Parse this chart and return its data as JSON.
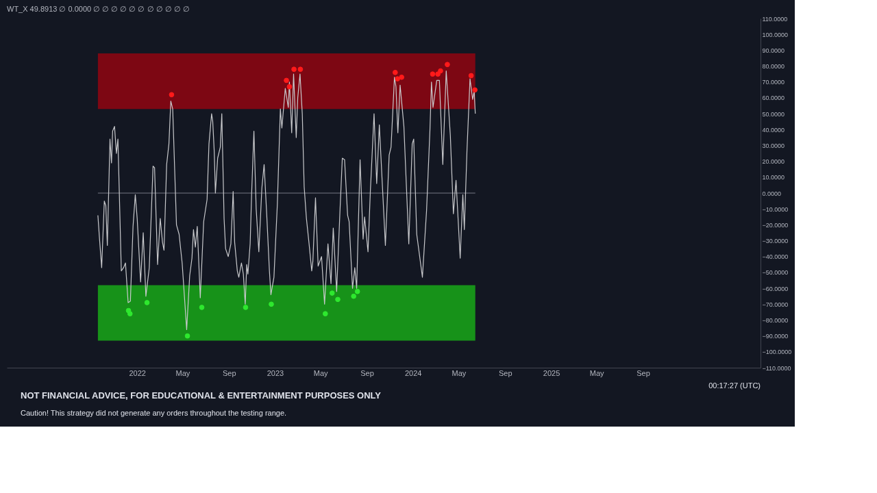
{
  "chart_data": {
    "type": "line",
    "title": "WT_X 49.8913 ∅ 0.0000 ∅ ∅ ∅ ∅ ∅ ∅ ∅ ∅ ∅ ∅ ∅",
    "annotations": [
      "NOT FINANCIAL ADVICE, FOR EDUCATIONAL & ENTERTAINMENT PURPOSES ONLY",
      "Caution! This strategy did not generate any orders throughout the testing range.",
      "00:17:27 (UTC)"
    ],
    "xlim": [
      "2021-01-21",
      "2026-07-09"
    ],
    "xticks": [
      {
        "value": "2022-01-01",
        "label": "2022"
      },
      {
        "value": "2022-05-01",
        "label": "May"
      },
      {
        "value": "2022-09-01",
        "label": "Sep"
      },
      {
        "value": "2023-01-01",
        "label": "2023"
      },
      {
        "value": "2023-05-01",
        "label": "May"
      },
      {
        "value": "2023-09-01",
        "label": "Sep"
      },
      {
        "value": "2024-01-01",
        "label": "2024"
      },
      {
        "value": "2024-05-01",
        "label": "May"
      },
      {
        "value": "2024-09-01",
        "label": "Sep"
      },
      {
        "value": "2025-01-01",
        "label": "2025"
      },
      {
        "value": "2025-05-01",
        "label": "May"
      },
      {
        "value": "2025-09-01",
        "label": "Sep"
      }
    ],
    "ylim": [
      -110,
      110
    ],
    "yticks": [
      {
        "value": -110,
        "label": "−110.0000"
      },
      {
        "value": -100,
        "label": "−100.0000"
      },
      {
        "value": -90,
        "label": "−90.0000"
      },
      {
        "value": -80,
        "label": "−80.0000"
      },
      {
        "value": -70,
        "label": "−70.0000"
      },
      {
        "value": -60,
        "label": "−60.0000"
      },
      {
        "value": -50,
        "label": "−50.0000"
      },
      {
        "value": -40,
        "label": "−40.0000"
      },
      {
        "value": -30,
        "label": "−30.0000"
      },
      {
        "value": -20,
        "label": "−20.0000"
      },
      {
        "value": -10,
        "label": "−10.0000"
      },
      {
        "value": 0,
        "label": "0.0000"
      },
      {
        "value": 10,
        "label": "10.0000"
      },
      {
        "value": 20,
        "label": "20.0000"
      },
      {
        "value": 30,
        "label": "30.0000"
      },
      {
        "value": 40,
        "label": "40.0000"
      },
      {
        "value": 50,
        "label": "50.0000"
      },
      {
        "value": 60,
        "label": "60.0000"
      },
      {
        "value": 70,
        "label": "70.0000"
      },
      {
        "value": 80,
        "label": "80.0000"
      },
      {
        "value": 90,
        "label": "90.0000"
      },
      {
        "value": 100,
        "label": "100.0000"
      },
      {
        "value": 110,
        "label": "110.0000"
      }
    ],
    "grid": false,
    "bands": [
      {
        "axis": "y",
        "from": 53,
        "to": 88,
        "color": "#8a0612"
      },
      {
        "axis": "y",
        "from": -93,
        "to": -58,
        "color": "#18a018"
      }
    ],
    "ref_lines": [
      {
        "axis": "y",
        "value": 0,
        "color": "#787b86"
      }
    ],
    "series": [
      {
        "type": "line",
        "color": "#c8c9cc",
        "marker": "none",
        "line_style": "solid",
        "x": [
          "2021-09-19",
          "2021-09-23",
          "2021-09-29",
          "2021-10-06",
          "2021-10-10",
          "2021-10-14",
          "2021-10-21",
          "2021-10-25",
          "2021-10-28",
          "2021-11-02",
          "2021-11-07",
          "2021-11-11",
          "2021-11-20",
          "2021-11-26",
          "2021-12-01",
          "2021-12-08",
          "2021-12-14",
          "2021-12-21",
          "2021-12-27",
          "2022-01-01",
          "2022-01-10",
          "2022-01-17",
          "2022-01-24",
          "2022-02-02",
          "2022-02-12",
          "2022-02-16",
          "2022-02-24",
          "2022-03-03",
          "2022-03-09",
          "2022-03-13",
          "2022-03-20",
          "2022-03-26",
          "2022-03-31",
          "2022-04-05",
          "2022-04-15",
          "2022-04-22",
          "2022-04-30",
          "2022-05-12",
          "2022-05-20",
          "2022-05-26",
          "2022-05-30",
          "2022-06-04",
          "2022-06-09",
          "2022-06-17",
          "2022-06-26",
          "2022-07-05",
          "2022-07-10",
          "2022-07-17",
          "2022-07-20",
          "2022-07-24",
          "2022-07-27",
          "2022-08-02",
          "2022-08-09",
          "2022-08-13",
          "2022-08-19",
          "2022-08-23",
          "2022-08-30",
          "2022-09-06",
          "2022-09-12",
          "2022-09-16",
          "2022-09-23",
          "2022-09-27",
          "2022-10-04",
          "2022-10-09",
          "2022-10-14",
          "2022-10-18",
          "2022-10-21",
          "2022-10-27",
          "2022-10-31",
          "2022-11-06",
          "2022-11-12",
          "2022-11-19",
          "2022-11-27",
          "2022-12-03",
          "2022-12-10",
          "2022-12-17",
          "2022-12-21",
          "2022-12-29",
          "2023-01-07",
          "2023-01-15",
          "2023-01-19",
          "2023-01-28",
          "2023-02-05",
          "2023-02-08",
          "2023-02-14",
          "2023-02-19",
          "2023-02-26",
          "2023-03-02",
          "2023-03-08",
          "2023-03-14",
          "2023-03-19",
          "2023-03-25",
          "2023-04-01",
          "2023-04-08",
          "2023-04-11",
          "2023-04-18",
          "2023-04-25",
          "2023-05-04",
          "2023-05-12",
          "2023-05-21",
          "2023-05-29",
          "2023-06-04",
          "2023-06-13",
          "2023-06-22",
          "2023-06-28",
          "2023-07-04",
          "2023-07-12",
          "2023-07-16",
          "2023-07-25",
          "2023-07-31",
          "2023-08-05",
          "2023-08-14",
          "2023-08-22",
          "2023-08-26",
          "2023-09-04",
          "2023-09-10",
          "2023-09-20",
          "2023-09-27",
          "2023-10-04",
          "2023-10-20",
          "2023-10-30",
          "2023-11-04",
          "2023-11-13",
          "2023-11-17",
          "2023-11-22",
          "2023-11-28",
          "2023-12-08",
          "2023-12-21",
          "2023-12-30",
          "2024-01-03",
          "2024-01-11",
          "2024-01-26",
          "2024-02-06",
          "2024-02-15",
          "2024-02-19",
          "2024-02-23",
          "2024-03-04",
          "2024-03-11",
          "2024-03-20",
          "2024-03-29",
          "2024-04-09",
          "2024-04-17",
          "2024-04-24",
          "2024-05-05",
          "2024-05-12",
          "2024-05-16",
          "2024-05-23",
          "2024-05-31",
          "2024-06-07",
          "2024-06-11",
          "2024-06-14"
        ],
        "values": [
          -14,
          -28,
          -47,
          -5,
          -8,
          -33,
          34,
          19,
          39,
          42,
          25,
          34,
          -49,
          -47,
          -44,
          -69,
          -68,
          -21,
          -1,
          -16,
          -56,
          -25,
          -65,
          -47,
          17,
          16,
          -45,
          -16,
          -31,
          -36,
          18,
          31,
          58,
          53,
          -20,
          -26,
          -44,
          -86,
          -52,
          -41,
          -23,
          -34,
          -21,
          -66,
          -18,
          -4,
          31,
          50,
          45,
          26,
          0,
          22,
          29,
          50,
          -16,
          -35,
          -40,
          -32,
          1,
          -31,
          -49,
          -53,
          -44,
          -51,
          -70,
          -45,
          -51,
          -32,
          0,
          39,
          -10,
          -37,
          3,
          18,
          -14,
          -49,
          -64,
          -53,
          -7,
          53,
          41,
          66,
          54,
          70,
          38,
          75,
          35,
          60,
          75,
          50,
          4,
          -16,
          -32,
          -49,
          -43,
          -3,
          -46,
          -40,
          -70,
          -32,
          -57,
          -22,
          -62,
          -10,
          22,
          21,
          -14,
          -18,
          -60,
          -47,
          -60,
          21,
          -29,
          -15,
          -37,
          0,
          50,
          6,
          43,
          -33,
          24,
          29,
          73,
          67,
          38,
          68,
          42,
          -32,
          31,
          34,
          -26,
          -53,
          -11,
          40,
          70,
          54,
          71,
          71,
          18,
          77,
          36,
          -13,
          8,
          -41,
          -1,
          -23,
          27,
          72,
          59,
          64,
          50
        ]
      },
      {
        "type": "scatter",
        "color": "#ff1a1a",
        "marker": "circle",
        "x": [
          "2022-04-02",
          "2023-01-31",
          "2023-02-08",
          "2023-02-20",
          "2023-03-09",
          "2023-11-15",
          "2023-11-21",
          "2023-12-02",
          "2024-02-22",
          "2024-03-07",
          "2024-03-14",
          "2024-04-01",
          "2024-06-03",
          "2024-06-13"
        ],
        "values": [
          62,
          71,
          67,
          78,
          78,
          76,
          72,
          73,
          75,
          75,
          77,
          81,
          74,
          65
        ]
      },
      {
        "type": "scatter",
        "color": "#2ee82e",
        "marker": "circle",
        "x": [
          "2021-12-09",
          "2021-12-13",
          "2022-01-27",
          "2022-05-14",
          "2022-06-21",
          "2022-10-15",
          "2022-12-22",
          "2023-05-14",
          "2023-06-01",
          "2023-06-16",
          "2023-07-28",
          "2023-08-07"
        ],
        "values": [
          -74,
          -76,
          -69,
          -90,
          -72,
          -72,
          -70,
          -76,
          -63,
          -67,
          -65,
          -62
        ]
      }
    ]
  }
}
